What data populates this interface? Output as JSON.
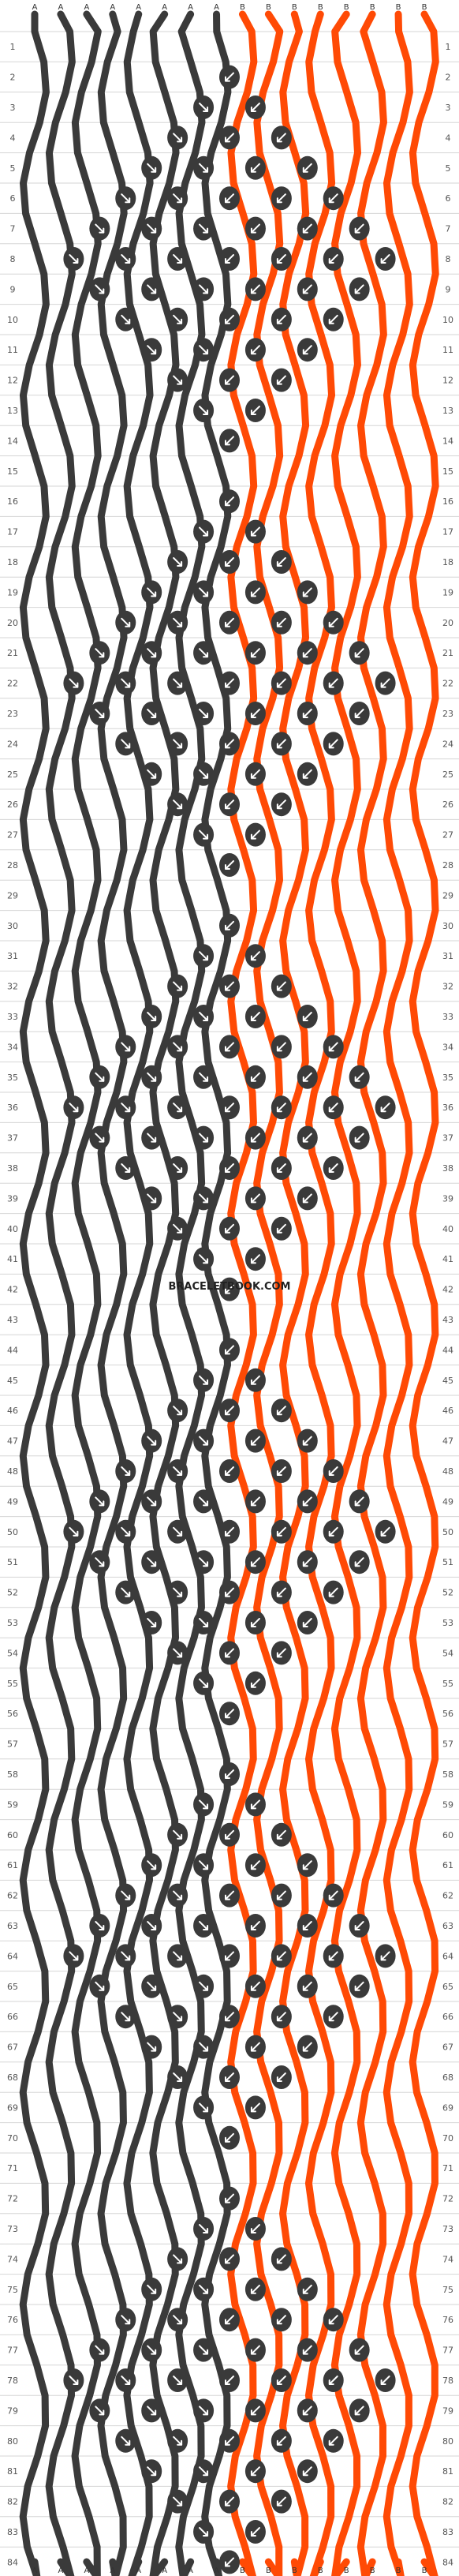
{
  "watermark": "BRACELETBOOK.COM",
  "rows": 84,
  "strand_letters": [
    "A",
    "A",
    "A",
    "A",
    "A",
    "A",
    "A",
    "A",
    "B",
    "B",
    "B",
    "B",
    "B",
    "B",
    "B",
    "B"
  ],
  "colors": {
    "A": "#3a3a3a",
    "B": "#ff4a05"
  },
  "grid_color": "#d6d6d6",
  "knot_arrow_color": "#ffffff"
}
